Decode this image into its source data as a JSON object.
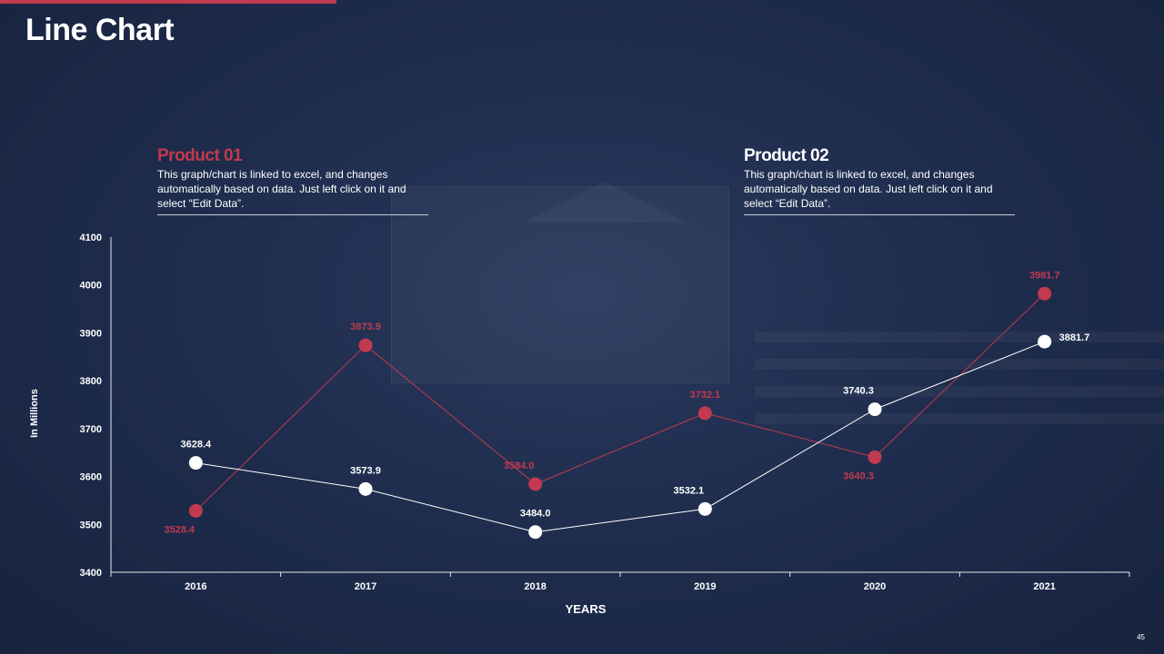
{
  "page": {
    "title": "Line Chart",
    "page_number": "45"
  },
  "products": [
    {
      "heading": "Product 01",
      "text": "This graph/chart is linked to excel, and changes automatically based on data. Just left click on it and select “Edit Data”."
    },
    {
      "heading": "Product 02",
      "text": "This graph/chart is linked to excel, and changes automatically based on data. Just left click on it and select “Edit Data”."
    }
  ],
  "colors": {
    "accent": "#c13a4f",
    "series2": "#ffffff",
    "background": "#1f2d4e"
  },
  "chart_data": {
    "type": "line",
    "categories": [
      "2016",
      "2017",
      "2018",
      "2019",
      "2020",
      "2021"
    ],
    "series": [
      {
        "values": [
          3528.4,
          3873.9,
          3584.0,
          3732.1,
          3640.3,
          3981.7
        ],
        "labels": [
          "3528.4",
          "3873.9",
          "3584.0",
          "3732.1",
          "3640.3",
          "3981.7"
        ],
        "color": "#c13a4f"
      },
      {
        "values": [
          3628.4,
          3573.9,
          3484.0,
          3532.1,
          3740.3,
          3881.7
        ],
        "labels": [
          "3628.4",
          "3573.9",
          "3484.0",
          "3532.1",
          "3740.3",
          "3881.7"
        ],
        "color": "#ffffff"
      }
    ],
    "xlabel": "YEARS",
    "ylabel": "In Millions",
    "ylim": [
      3400,
      4100
    ],
    "yticks": [
      "3400",
      "3500",
      "3600",
      "3700",
      "3800",
      "3900",
      "4000",
      "4100"
    ],
    "grid": false,
    "legend": "none"
  }
}
